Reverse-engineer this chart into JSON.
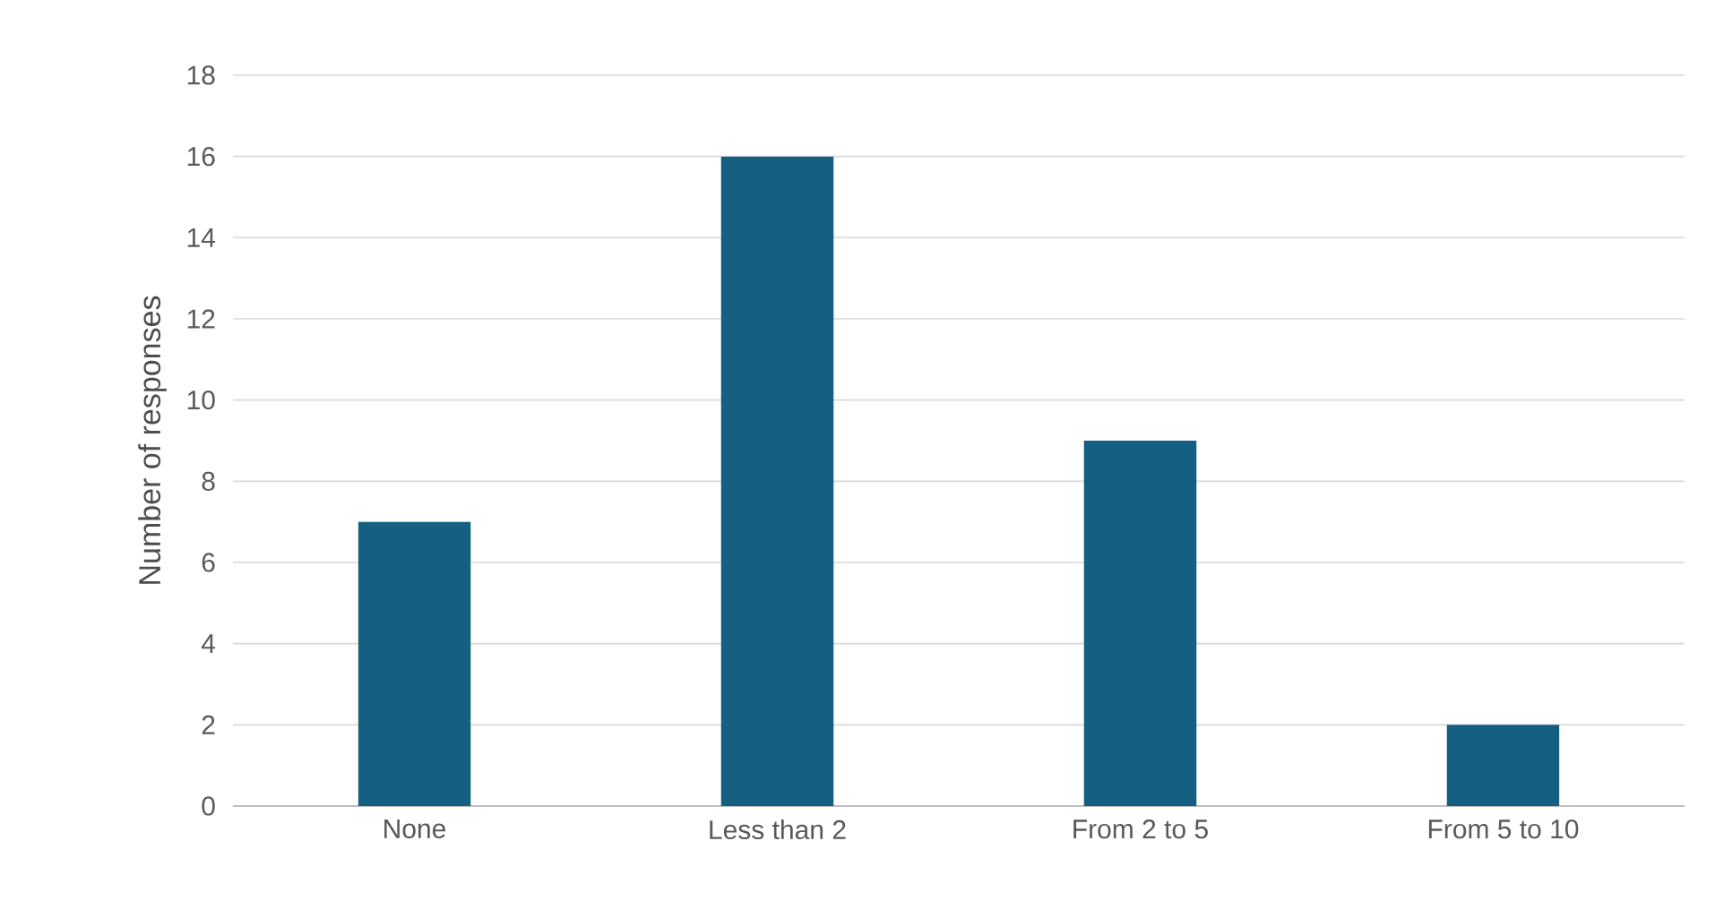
{
  "chart_data": {
    "type": "bar",
    "ylabel": "Number of responses",
    "categories": [
      "None",
      "Less than 2",
      "From 2 to 5",
      "From 5 to 10"
    ],
    "values": [
      7,
      16,
      9,
      2
    ],
    "color": "#156082",
    "ylim": [
      0,
      18
    ],
    "yticks": [
      0,
      2,
      4,
      6,
      8,
      10,
      12,
      14,
      16,
      18
    ],
    "grid": "y"
  }
}
